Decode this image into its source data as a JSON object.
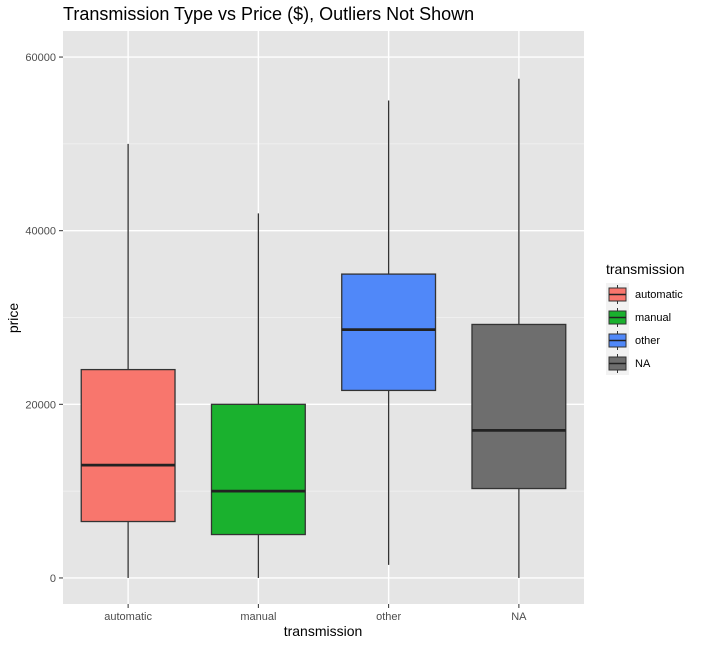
{
  "chart_data": {
    "type": "box",
    "title": "Transmission Type vs Price ($), Outliers Not Shown",
    "xlabel": "transmission",
    "ylabel": "price",
    "categories": [
      "automatic",
      "manual",
      "other",
      "NA"
    ],
    "ylim": [
      -3000,
      63000
    ],
    "yticks": [
      0,
      20000,
      40000,
      60000
    ],
    "ytick_labels": [
      "0",
      "20000",
      "40000",
      "60000"
    ],
    "boxes": [
      {
        "category": "automatic",
        "min": 0,
        "q1": 6500,
        "median": 13000,
        "q3": 24000,
        "max": 50000,
        "color": "#F8766D"
      },
      {
        "category": "manual",
        "min": 0,
        "q1": 5000,
        "median": 10000,
        "q3": 20000,
        "max": 42000,
        "color": "#1AB12E"
      },
      {
        "category": "other",
        "min": 1500,
        "q1": 21600,
        "median": 28600,
        "q3": 35000,
        "max": 55000,
        "color": "#5088F9"
      },
      {
        "category": "NA",
        "min": 0,
        "q1": 10300,
        "median": 17000,
        "q3": 29200,
        "max": 57500,
        "color": "#6E6E6E"
      }
    ],
    "legend": {
      "title": "transmission",
      "position": "right",
      "entries": [
        {
          "label": "automatic",
          "color": "#F8766D"
        },
        {
          "label": "manual",
          "color": "#1AB12E"
        },
        {
          "label": "other",
          "color": "#5088F9"
        },
        {
          "label": "NA",
          "color": "#6E6E6E"
        }
      ]
    },
    "grid": true,
    "panel_background": "#E5E5E5"
  }
}
